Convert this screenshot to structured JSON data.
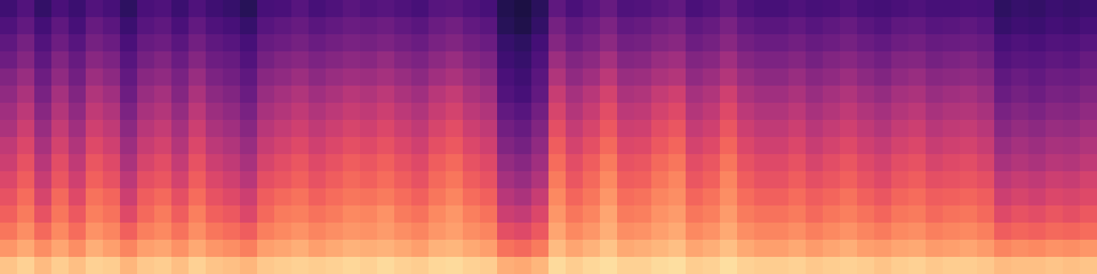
{
  "chart_data": {
    "type": "heatmap",
    "tick_labels": false,
    "color": "magma",
    "zlim": [
      -10,
      95
    ],
    "cells": [
      [
        12,
        17,
        9,
        15,
        11,
        17,
        14,
        8,
        15,
        16,
        11,
        16,
        12,
        10,
        6,
        14,
        15,
        18,
        14,
        16,
        19,
        17,
        18,
        16,
        14,
        18,
        19,
        16,
        14,
        5,
        3,
        7,
        20,
        15,
        18,
        22,
        16,
        17,
        19,
        21,
        15,
        17,
        21,
        16,
        14,
        14,
        16,
        14,
        15,
        17,
        14,
        13,
        15,
        16,
        14,
        14,
        15,
        14,
        8,
        10,
        9,
        11,
        10,
        11
      ],
      [
        16,
        21,
        13,
        20,
        14,
        22,
        19,
        11,
        18,
        20,
        15,
        21,
        16,
        14,
        10,
        18,
        20,
        22,
        19,
        21,
        23,
        22,
        24,
        21,
        19,
        23,
        25,
        21,
        19,
        6,
        4,
        9,
        26,
        20,
        23,
        28,
        21,
        22,
        25,
        27,
        20,
        22,
        27,
        21,
        19,
        19,
        21,
        18,
        20,
        22,
        19,
        17,
        20,
        21,
        18,
        19,
        20,
        18,
        10,
        12,
        11,
        13,
        12,
        14
      ],
      [
        20,
        26,
        17,
        24,
        18,
        26,
        23,
        15,
        22,
        24,
        19,
        25,
        20,
        18,
        14,
        22,
        24,
        26,
        23,
        25,
        27,
        26,
        28,
        25,
        23,
        27,
        29,
        25,
        23,
        10,
        8,
        13,
        30,
        24,
        27,
        32,
        25,
        26,
        29,
        31,
        24,
        26,
        31,
        25,
        23,
        23,
        25,
        22,
        24,
        26,
        23,
        21,
        24,
        25,
        22,
        23,
        24,
        22,
        14,
        16,
        15,
        17,
        16,
        18
      ],
      [
        24,
        30,
        20,
        29,
        22,
        31,
        28,
        18,
        26,
        29,
        23,
        30,
        24,
        22,
        17,
        26,
        29,
        31,
        28,
        30,
        32,
        31,
        34,
        30,
        28,
        32,
        35,
        30,
        28,
        12,
        10,
        16,
        36,
        29,
        32,
        38,
        30,
        31,
        35,
        37,
        29,
        31,
        37,
        30,
        28,
        28,
        30,
        26,
        29,
        31,
        28,
        25,
        29,
        30,
        26,
        28,
        29,
        26,
        17,
        19,
        18,
        20,
        19,
        22
      ],
      [
        29,
        35,
        24,
        33,
        25,
        36,
        32,
        21,
        31,
        33,
        27,
        35,
        28,
        25,
        20,
        31,
        33,
        36,
        32,
        35,
        37,
        36,
        38,
        35,
        32,
        37,
        40,
        35,
        32,
        15,
        12,
        19,
        41,
        33,
        37,
        44,
        35,
        36,
        40,
        42,
        33,
        36,
        42,
        35,
        32,
        32,
        35,
        31,
        33,
        36,
        32,
        29,
        33,
        35,
        31,
        32,
        33,
        31,
        20,
        23,
        21,
        24,
        23,
        25
      ],
      [
        33,
        40,
        27,
        38,
        29,
        41,
        37,
        24,
        35,
        38,
        30,
        40,
        32,
        29,
        23,
        35,
        38,
        41,
        37,
        40,
        43,
        41,
        44,
        40,
        37,
        43,
        46,
        40,
        37,
        17,
        14,
        21,
        47,
        38,
        43,
        50,
        40,
        41,
        46,
        49,
        38,
        41,
        49,
        40,
        37,
        37,
        40,
        35,
        38,
        41,
        37,
        34,
        38,
        40,
        35,
        37,
        38,
        35,
        23,
        26,
        24,
        27,
        26,
        29
      ],
      [
        37,
        44,
        31,
        42,
        33,
        45,
        41,
        28,
        39,
        42,
        34,
        44,
        36,
        33,
        27,
        39,
        42,
        45,
        41,
        44,
        47,
        45,
        48,
        44,
        41,
        47,
        50,
        44,
        41,
        21,
        18,
        25,
        51,
        42,
        47,
        54,
        44,
        45,
        50,
        53,
        42,
        45,
        53,
        44,
        41,
        41,
        44,
        39,
        42,
        45,
        41,
        38,
        42,
        44,
        39,
        41,
        42,
        39,
        27,
        30,
        28,
        31,
        30,
        33
      ],
      [
        40,
        48,
        35,
        46,
        37,
        49,
        45,
        32,
        43,
        46,
        38,
        48,
        40,
        37,
        31,
        43,
        46,
        49,
        45,
        48,
        51,
        49,
        52,
        48,
        45,
        51,
        54,
        48,
        45,
        25,
        22,
        29,
        55,
        46,
        51,
        58,
        48,
        49,
        54,
        57,
        46,
        49,
        57,
        48,
        45,
        45,
        48,
        43,
        46,
        49,
        45,
        42,
        46,
        48,
        43,
        45,
        46,
        43,
        31,
        34,
        32,
        35,
        34,
        37
      ],
      [
        45,
        52,
        39,
        50,
        41,
        53,
        49,
        36,
        47,
        50,
        42,
        52,
        44,
        41,
        35,
        47,
        50,
        53,
        49,
        52,
        55,
        53,
        56,
        52,
        49,
        55,
        58,
        52,
        49,
        29,
        26,
        33,
        59,
        50,
        55,
        62,
        52,
        53,
        58,
        61,
        50,
        53,
        61,
        52,
        49,
        49,
        52,
        47,
        50,
        53,
        49,
        46,
        50,
        52,
        47,
        49,
        50,
        47,
        35,
        38,
        36,
        39,
        38,
        41
      ],
      [
        48,
        56,
        43,
        54,
        45,
        57,
        53,
        40,
        51,
        54,
        46,
        56,
        48,
        45,
        39,
        51,
        54,
        57,
        53,
        56,
        59,
        57,
        60,
        56,
        53,
        59,
        62,
        56,
        53,
        34,
        31,
        37,
        63,
        54,
        59,
        66,
        56,
        57,
        62,
        65,
        54,
        57,
        65,
        56,
        53,
        53,
        56,
        51,
        54,
        57,
        53,
        50,
        54,
        56,
        51,
        53,
        54,
        51,
        39,
        42,
        40,
        43,
        42,
        45
      ],
      [
        52,
        59,
        47,
        57,
        49,
        60,
        56,
        44,
        55,
        57,
        50,
        59,
        52,
        49,
        43,
        55,
        57,
        60,
        56,
        59,
        62,
        60,
        63,
        59,
        56,
        62,
        65,
        59,
        56,
        38,
        35,
        41,
        66,
        57,
        62,
        69,
        59,
        60,
        65,
        68,
        57,
        60,
        68,
        59,
        56,
        56,
        59,
        55,
        57,
        60,
        56,
        53,
        57,
        59,
        55,
        56,
        57,
        55,
        44,
        47,
        45,
        48,
        47,
        50
      ],
      [
        56,
        63,
        51,
        62,
        53,
        64,
        61,
        48,
        59,
        62,
        55,
        63,
        56,
        53,
        48,
        59,
        62,
        64,
        60,
        63,
        65,
        64,
        66,
        63,
        60,
        65,
        68,
        63,
        60,
        43,
        40,
        47,
        69,
        61,
        65,
        72,
        63,
        64,
        68,
        70,
        61,
        64,
        70,
        63,
        60,
        60,
        63,
        59,
        61,
        64,
        60,
        57,
        61,
        63,
        59,
        60,
        61,
        59,
        48,
        51,
        49,
        52,
        51,
        53
      ],
      [
        60,
        66,
        56,
        65,
        58,
        67,
        64,
        53,
        62,
        66,
        59,
        67,
        60,
        58,
        52,
        62,
        66,
        67,
        64,
        66,
        69,
        68,
        71,
        66,
        64,
        69,
        72,
        67,
        64,
        48,
        46,
        52,
        72,
        65,
        68,
        75,
        66,
        67,
        71,
        73,
        65,
        67,
        73,
        66,
        64,
        64,
        66,
        62,
        65,
        67,
        64,
        61,
        65,
        66,
        62,
        64,
        65,
        62,
        53,
        56,
        54,
        57,
        55,
        58
      ],
      [
        65,
        70,
        62,
        69,
        63,
        71,
        68,
        60,
        67,
        69,
        64,
        70,
        65,
        63,
        59,
        67,
        69,
        71,
        68,
        70,
        72,
        71,
        73,
        70,
        68,
        72,
        74,
        70,
        68,
        55,
        53,
        58,
        75,
        69,
        72,
        77,
        70,
        71,
        74,
        76,
        69,
        71,
        76,
        70,
        68,
        68,
        70,
        67,
        69,
        71,
        68,
        66,
        69,
        70,
        67,
        68,
        69,
        67,
        59,
        61,
        60,
        62,
        61,
        63
      ],
      [
        72,
        76,
        70,
        75,
        70,
        77,
        74,
        68,
        74,
        75,
        71,
        76,
        72,
        70,
        67,
        74,
        75,
        77,
        74,
        76,
        78,
        77,
        78,
        76,
        74,
        78,
        79,
        76,
        74,
        64,
        62,
        66,
        80,
        75,
        78,
        82,
        76,
        77,
        79,
        81,
        75,
        77,
        81,
        76,
        74,
        74,
        76,
        73,
        75,
        77,
        74,
        73,
        75,
        76,
        73,
        74,
        75,
        73,
        68,
        70,
        69,
        71,
        70,
        72
      ],
      [
        82,
        85,
        80,
        84,
        81,
        85,
        84,
        79,
        83,
        84,
        81,
        85,
        82,
        81,
        79,
        83,
        84,
        85,
        84,
        85,
        86,
        85,
        87,
        85,
        84,
        86,
        87,
        85,
        84,
        77,
        76,
        79,
        87,
        84,
        86,
        88,
        85,
        85,
        87,
        88,
        84,
        85,
        88,
        85,
        84,
        84,
        85,
        83,
        84,
        85,
        84,
        82,
        84,
        85,
        83,
        84,
        84,
        83,
        80,
        81,
        81,
        82,
        81,
        82
      ]
    ]
  }
}
